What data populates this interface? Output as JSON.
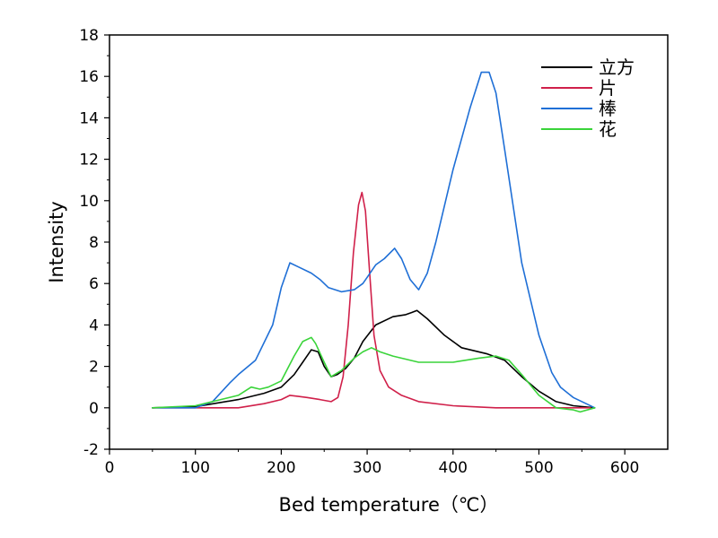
{
  "chart_data": {
    "type": "line",
    "xlabel": "Bed temperature（℃）",
    "ylabel": "Intensity",
    "xlim": [
      0,
      650
    ],
    "ylim": [
      -2,
      18
    ],
    "xticks": [
      0,
      100,
      200,
      300,
      400,
      500,
      600
    ],
    "yticks": [
      -2,
      0,
      2,
      4,
      6,
      8,
      10,
      12,
      14,
      16,
      18
    ],
    "legend_position": "top-right",
    "grid": false,
    "series": [
      {
        "name": "立方",
        "color": "#000000",
        "x": [
          50,
          100,
          150,
          180,
          200,
          215,
          225,
          235,
          243,
          250,
          258,
          265,
          275,
          285,
          295,
          310,
          330,
          345,
          352,
          358,
          370,
          390,
          410,
          440,
          460,
          480,
          500,
          520,
          540,
          565
        ],
        "y": [
          0,
          0.05,
          0.4,
          0.7,
          1.0,
          1.6,
          2.2,
          2.8,
          2.7,
          2.0,
          1.5,
          1.6,
          1.9,
          2.4,
          3.2,
          4.0,
          4.4,
          4.5,
          4.6,
          4.7,
          4.3,
          3.5,
          2.9,
          2.6,
          2.3,
          1.5,
          0.8,
          0.3,
          0.1,
          0
        ]
      },
      {
        "name": "片",
        "color": "#d0204a",
        "x": [
          50,
          100,
          150,
          180,
          200,
          210,
          220,
          230,
          245,
          258,
          266,
          272,
          278,
          284,
          290,
          294,
          298,
          303,
          308,
          315,
          325,
          340,
          360,
          400,
          450,
          500,
          560
        ],
        "y": [
          0,
          0,
          0,
          0.2,
          0.4,
          0.6,
          0.55,
          0.5,
          0.4,
          0.3,
          0.5,
          1.5,
          4.0,
          7.5,
          9.8,
          10.4,
          9.5,
          6.5,
          3.5,
          1.8,
          1.0,
          0.6,
          0.3,
          0.1,
          0,
          0,
          0
        ]
      },
      {
        "name": "棒",
        "color": "#1f6fd6",
        "x": [
          50,
          100,
          120,
          140,
          150,
          170,
          190,
          200,
          210,
          220,
          235,
          245,
          255,
          270,
          285,
          295,
          300,
          310,
          320,
          332,
          340,
          350,
          360,
          370,
          380,
          400,
          420,
          433,
          442,
          450,
          460,
          480,
          500,
          515,
          525,
          540,
          555,
          565
        ],
        "y": [
          0,
          0,
          0.3,
          1.2,
          1.6,
          2.3,
          4.0,
          5.8,
          7.0,
          6.8,
          6.5,
          6.2,
          5.8,
          5.6,
          5.7,
          6.0,
          6.3,
          6.9,
          7.2,
          7.7,
          7.2,
          6.2,
          5.7,
          6.5,
          8.0,
          11.5,
          14.5,
          16.2,
          16.2,
          15.2,
          12.5,
          7.0,
          3.5,
          1.7,
          1.0,
          0.5,
          0.2,
          0
        ]
      },
      {
        "name": "花",
        "color": "#3ad43a",
        "x": [
          50,
          100,
          150,
          165,
          175,
          185,
          200,
          215,
          225,
          235,
          240,
          250,
          258,
          270,
          285,
          295,
          305,
          315,
          330,
          360,
          400,
          430,
          450,
          465,
          480,
          500,
          520,
          540,
          548,
          565
        ],
        "y": [
          0,
          0.1,
          0.6,
          1.0,
          0.9,
          1.0,
          1.3,
          2.5,
          3.2,
          3.4,
          3.1,
          2.2,
          1.5,
          1.8,
          2.4,
          2.7,
          2.9,
          2.7,
          2.5,
          2.2,
          2.2,
          2.4,
          2.5,
          2.3,
          1.6,
          0.6,
          0,
          -0.1,
          -0.2,
          0
        ]
      }
    ]
  }
}
